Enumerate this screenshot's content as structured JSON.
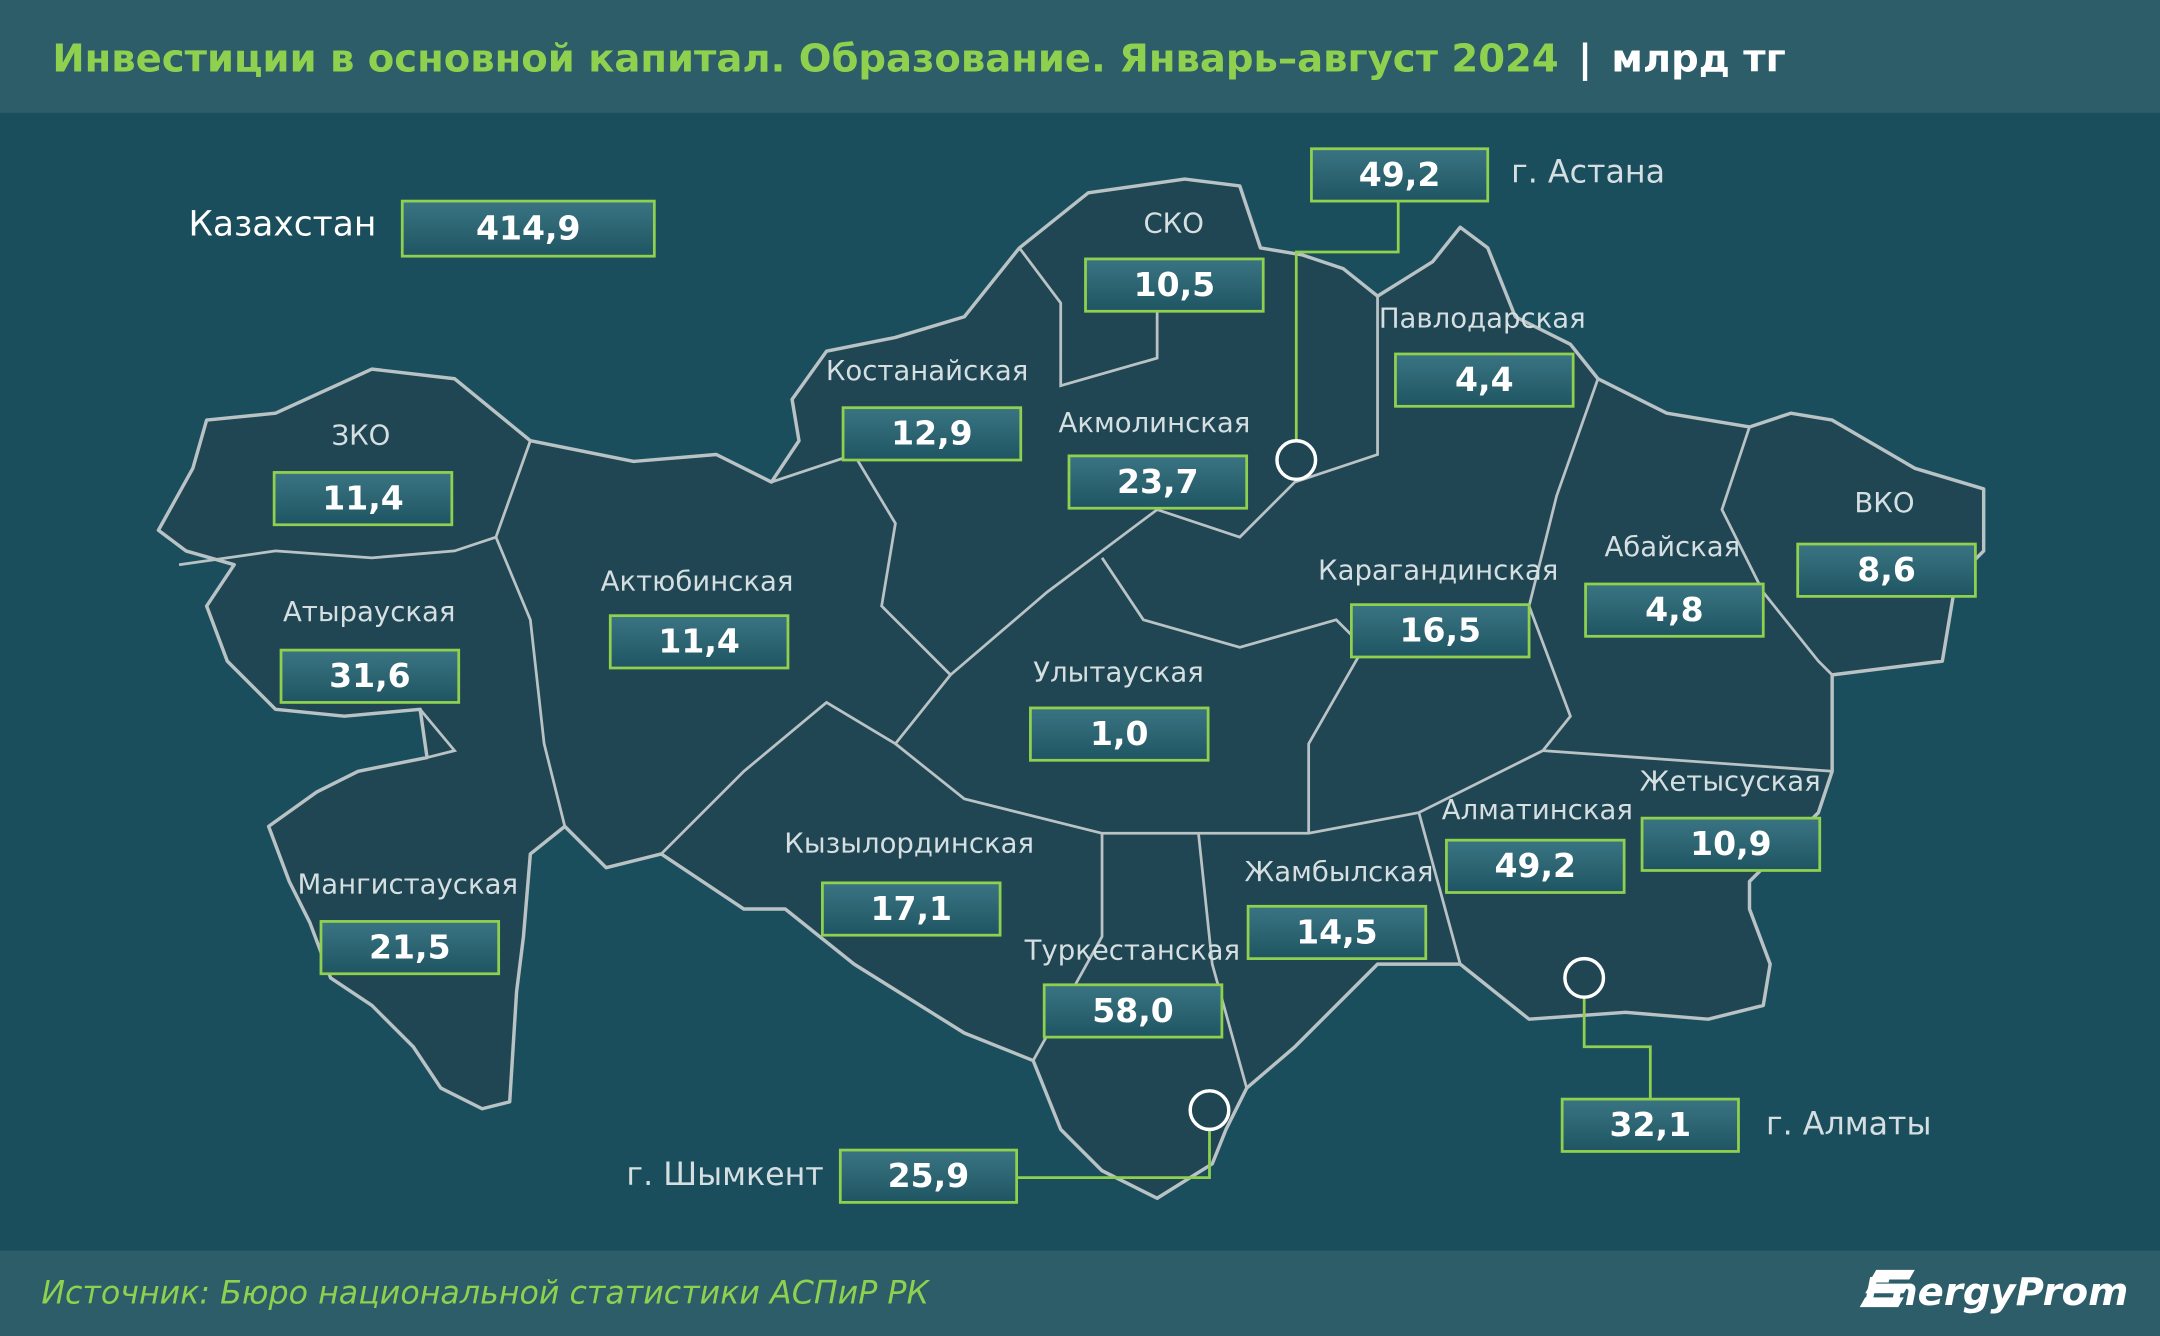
{
  "header": {
    "title": "Инвестиции в основной капитал. Образование. Январь–август 2024",
    "unit": "млрд тг"
  },
  "total": {
    "label": "Казахстан",
    "value": "414,9"
  },
  "regions": [
    {
      "label": "СКО",
      "value": "10,5"
    },
    {
      "label": "Павлодарская",
      "value": "4,4"
    },
    {
      "label": "Костанайская",
      "value": "12,9"
    },
    {
      "label": "Акмолинская",
      "value": "23,7"
    },
    {
      "label": "ЗКО",
      "value": "11,4"
    },
    {
      "label": "ВКО",
      "value": "8,6"
    },
    {
      "label": "Абайская",
      "value": "4,8"
    },
    {
      "label": "Актюбинская",
      "value": "11,4"
    },
    {
      "label": "Карагандинская",
      "value": "16,5"
    },
    {
      "label": "Атырауская",
      "value": "31,6"
    },
    {
      "label": "Улытауская",
      "value": "1,0"
    },
    {
      "label": "Жетысуская",
      "value": "10,9"
    },
    {
      "label": "Алматинская",
      "value": "49,2"
    },
    {
      "label": "Кызылординская",
      "value": "17,1"
    },
    {
      "label": "Жамбылская",
      "value": "14,5"
    },
    {
      "label": "Мангистауская",
      "value": "21,5"
    },
    {
      "label": "Туркестанская",
      "value": "58,0"
    }
  ],
  "cities": [
    {
      "label": "г. Астана",
      "value": "49,2"
    },
    {
      "label": "г. Алматы",
      "value": "32,1"
    },
    {
      "label": "г. Шымкент",
      "value": "25,9"
    }
  ],
  "footer": {
    "source": "Источник: Бюро национальной статистики АСПиР РК",
    "logo": "EnergyProm"
  }
}
